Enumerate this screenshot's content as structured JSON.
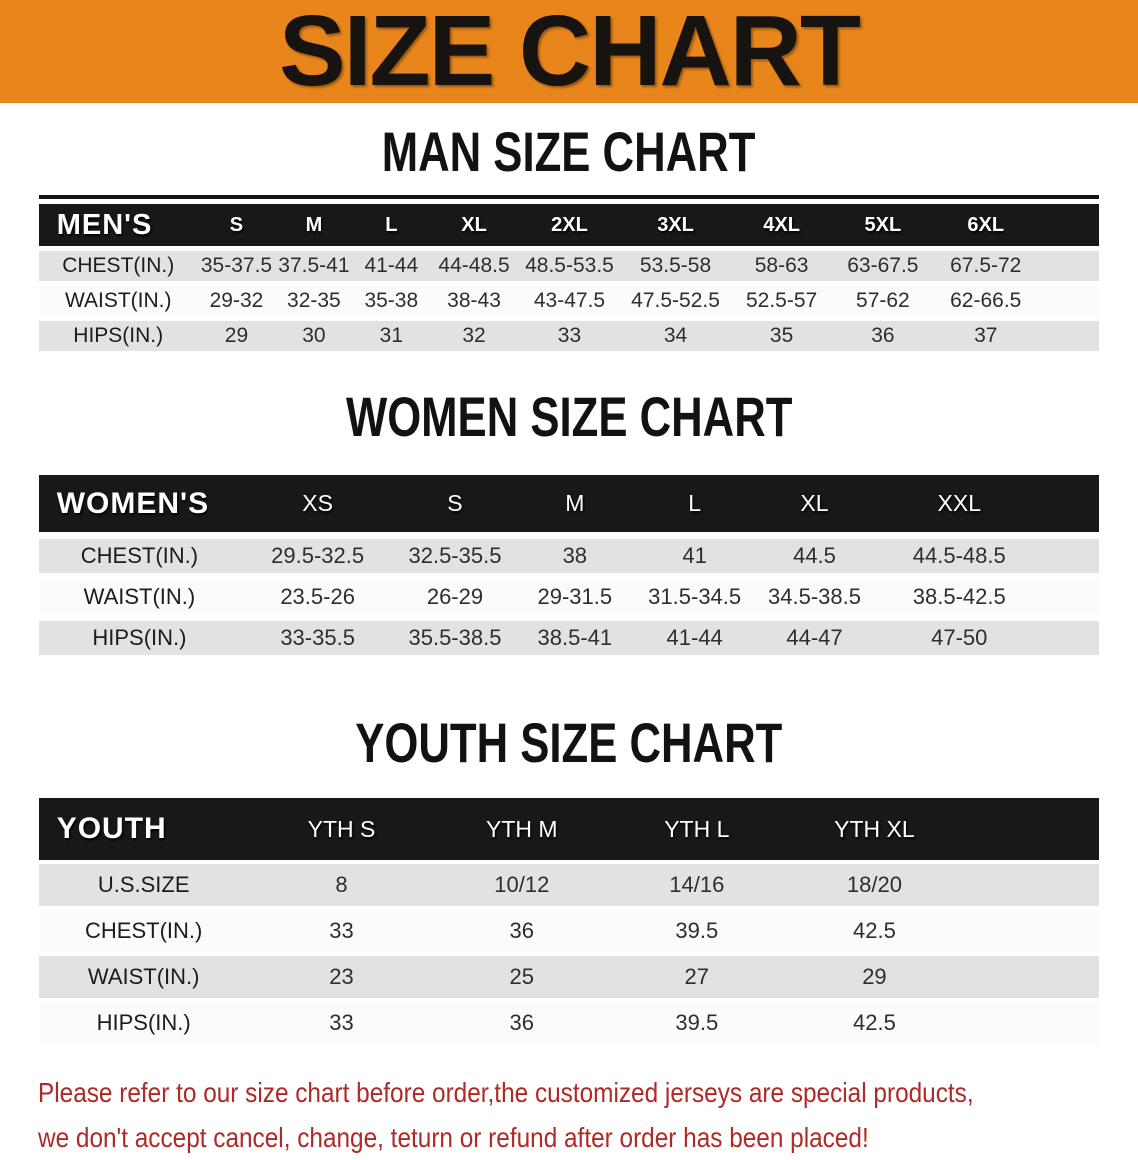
{
  "banner": {
    "title": "SIZE CHART"
  },
  "colors": {
    "banner_bg": "#E8861C",
    "banner_text": "#171310",
    "table_header_bg": "#181818",
    "table_header_text": "#FFFFFF",
    "stripe_row_bg": "#E2E2E2",
    "plain_row_bg": "#FBFBFB",
    "heading_text": "#121212",
    "cell_text": "#2E2E2E",
    "disclaimer_text": "#AE2A26"
  },
  "sections": [
    {
      "id": "men",
      "heading": "MAN SIZE CHART",
      "table": {
        "corner_label": "MEN'S",
        "columns": [
          "S",
          "M",
          "L",
          "XL",
          "2XL",
          "3XL",
          "4XL",
          "5XL",
          "6XL"
        ],
        "rows": [
          {
            "label": "CHEST(IN.)",
            "values": [
              "35-37.5",
              "37.5-41",
              "41-44",
              "44-48.5",
              "48.5-53.5",
              "53.5-58",
              "58-63",
              "63-67.5",
              "67.5-72"
            ]
          },
          {
            "label": "WAIST(IN.)",
            "values": [
              "29-32",
              "32-35",
              "35-38",
              "38-43",
              "43-47.5",
              "47.5-52.5",
              "52.5-57",
              "57-62",
              "62-66.5"
            ]
          },
          {
            "label": "HIPS(IN.)",
            "values": [
              "29",
              "30",
              "31",
              "32",
              "33",
              "34",
              "35",
              "36",
              "37"
            ]
          }
        ]
      }
    },
    {
      "id": "women",
      "heading": "WOMEN SIZE CHART",
      "table": {
        "corner_label": "WOMEN'S",
        "columns": [
          "XS",
          "S",
          "M",
          "L",
          "XL",
          "XXL"
        ],
        "rows": [
          {
            "label": "CHEST(IN.)",
            "values": [
              "29.5-32.5",
              "32.5-35.5",
              "38",
              "41",
              "44.5",
              "44.5-48.5"
            ]
          },
          {
            "label": "WAIST(IN.)",
            "values": [
              "23.5-26",
              "26-29",
              "29-31.5",
              "31.5-34.5",
              "34.5-38.5",
              "38.5-42.5"
            ]
          },
          {
            "label": "HIPS(IN.)",
            "values": [
              "33-35.5",
              "35.5-38.5",
              "38.5-41",
              "41-44",
              "44-47",
              "47-50"
            ]
          }
        ]
      }
    },
    {
      "id": "youth",
      "heading": "YOUTH SIZE CHART",
      "table": {
        "corner_label": "YOUTH",
        "columns": [
          "YTH S",
          "YTH M",
          "YTH L",
          "YTH XL"
        ],
        "rows": [
          {
            "label": "U.S.SIZE",
            "values": [
              "8",
              "10/12",
              "14/16",
              "18/20"
            ]
          },
          {
            "label": "CHEST(IN.)",
            "values": [
              "33",
              "36",
              "39.5",
              "42.5"
            ]
          },
          {
            "label": "WAIST(IN.)",
            "values": [
              "23",
              "25",
              "27",
              "29"
            ]
          },
          {
            "label": "HIPS(IN.)",
            "values": [
              "33",
              "36",
              "39.5",
              "42.5"
            ]
          }
        ]
      }
    }
  ],
  "disclaimer": {
    "line1": "Please refer to our size chart before order,the customized jerseys are special products,",
    "line2": "we don't accept cancel, change, teturn or refund after order has been placed!"
  }
}
